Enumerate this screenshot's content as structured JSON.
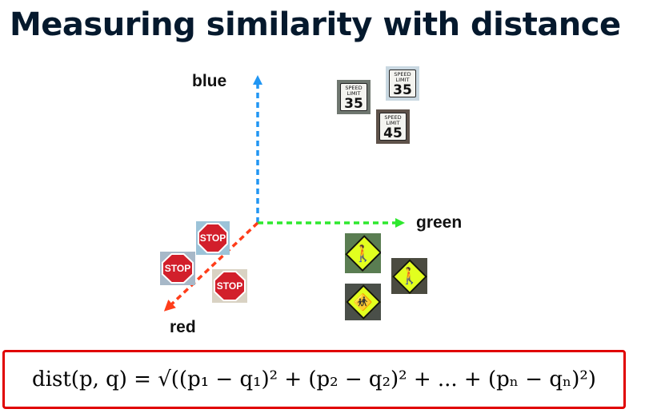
{
  "title": "Measuring similarity with distance",
  "axes": {
    "blue": "blue",
    "green": "green",
    "red": "red"
  },
  "colors": {
    "blue_axis": "#2196f3",
    "green_axis": "#2ee82e",
    "red_axis": "#ff3d1a",
    "formula_border": "#e00000"
  },
  "signs": {
    "speed_line1": "SPEED",
    "speed_line2": "LIMIT",
    "speed_values": [
      "35",
      "35",
      "45"
    ],
    "stop_text": "STOP"
  },
  "formula": "dist(p, q) = √((p₁ − q₁)² + (p₂ − q₂)² + ... + (pₙ − qₙ)²)"
}
